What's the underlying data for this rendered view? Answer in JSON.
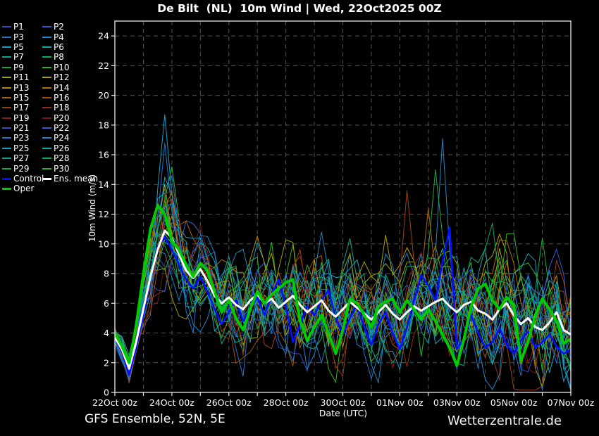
{
  "header": {
    "title": "De Bilt  (NL)  10m Wind | Wed, 22Oct2025 00Z"
  },
  "legend": {
    "control_label": "Control",
    "mean_label": "Ens. mean",
    "oper_label": "Oper"
  },
  "footer": {
    "left": "GFS Ensemble, 52N, 5E",
    "right": "Wetterzentrale.de"
  },
  "chart_data": {
    "type": "line",
    "title": "De Bilt  (NL)  10m Wind | Wed, 22Oct2025 00Z",
    "xlabel": "Date (UTC)",
    "ylabel": "10m Wind (m/s)",
    "ylim": [
      0,
      25
    ],
    "ytick_step": 2,
    "x_days": 16,
    "points_per_day": 4,
    "xtick_labels": [
      "22Oct 00z",
      "24Oct 00z",
      "26Oct 00z",
      "28Oct 00z",
      "30Oct 00z",
      "01Nov 00z",
      "03Nov 00z",
      "05Nov 00z",
      "07Nov 00z"
    ],
    "xtick_every_days": 2,
    "grid": {
      "x_every_days": 1,
      "y_every": 2
    },
    "background": "#000000",
    "grid_color": "#52524a",
    "axis_color": "#e9e9e9",
    "text_color": "#ffffff",
    "series": {
      "mean": {
        "name": "Ens. mean",
        "color": "#ffffff",
        "width": 3,
        "values": [
          3.7,
          2.9,
          1.6,
          3.4,
          5.6,
          7.8,
          9.6,
          10.9,
          10.4,
          9.3,
          8.2,
          7.7,
          8.3,
          7.5,
          6.5,
          6.0,
          6.4,
          5.9,
          5.6,
          6.2,
          6.6,
          6.0,
          6.3,
          5.7,
          6.1,
          6.5,
          5.9,
          5.4,
          5.8,
          6.2,
          5.5,
          5.1,
          5.6,
          6.1,
          5.7,
          5.3,
          4.9,
          5.4,
          5.9,
          5.3,
          4.9,
          5.4,
          5.8,
          5.5,
          5.8,
          6.1,
          6.3,
          5.8,
          5.4,
          5.9,
          6.1,
          5.5,
          5.3,
          4.9,
          5.6,
          6.0,
          5.2,
          4.6,
          5.0,
          4.4,
          4.2,
          4.7,
          5.4,
          4.2,
          3.9
        ]
      },
      "control": {
        "name": "Control",
        "color": "#0011ff",
        "width": 2.6,
        "values": [
          3.6,
          2.8,
          1.2,
          3.0,
          5.2,
          7.8,
          9.8,
          10.5,
          9.6,
          8.6,
          7.6,
          7.0,
          7.8,
          6.8,
          5.6,
          4.6,
          5.4,
          6.2,
          4.8,
          5.6,
          6.4,
          5.2,
          6.6,
          7.6,
          5.8,
          3.4,
          4.6,
          5.8,
          5.2,
          6.2,
          6.9,
          5.0,
          3.9,
          5.0,
          5.9,
          4.4,
          3.2,
          4.6,
          5.4,
          4.0,
          2.9,
          4.4,
          6.2,
          7.9,
          7.2,
          6.2,
          8.8,
          11.1,
          2.9,
          3.6,
          5.2,
          4.0,
          3.0,
          3.4,
          4.3,
          3.2,
          2.6,
          3.5,
          4.1,
          3.0,
          3.4,
          3.9,
          3.1,
          2.6,
          2.9
        ]
      },
      "oper": {
        "name": "Oper",
        "color": "#00cc00",
        "width": 3.8,
        "values": [
          4.0,
          3.1,
          2.0,
          4.5,
          8.0,
          11.0,
          12.6,
          12.0,
          10.2,
          9.6,
          8.6,
          7.8,
          8.7,
          8.2,
          6.8,
          5.4,
          6.2,
          5.0,
          4.2,
          5.6,
          6.8,
          6.0,
          6.6,
          7.0,
          7.4,
          7.6,
          4.8,
          3.5,
          4.4,
          5.2,
          4.0,
          2.6,
          4.2,
          6.3,
          6.0,
          5.2,
          4.4,
          5.8,
          6.1,
          6.3,
          5.4,
          6.2,
          5.6,
          4.9,
          5.6,
          4.8,
          3.9,
          3.0,
          1.8,
          3.6,
          5.8,
          7.0,
          7.3,
          6.2,
          5.6,
          6.4,
          5.9,
          2.1,
          3.4,
          5.2,
          6.3,
          5.6,
          4.8,
          3.3,
          3.6
        ]
      }
    },
    "members": {
      "count": 30,
      "labels": [
        "P1",
        "P2",
        "P3",
        "P4",
        "P5",
        "P6",
        "P7",
        "P8",
        "P9",
        "P10",
        "P11",
        "P12",
        "P13",
        "P14",
        "P15",
        "P16",
        "P17",
        "P18",
        "P19",
        "P20",
        "P21",
        "P22",
        "P23",
        "P24",
        "P25",
        "P26",
        "P27",
        "P28",
        "P29",
        "P30"
      ],
      "palette": [
        "#2b50c8",
        "#2b5fd0",
        "#2673cc",
        "#1d86c4",
        "#12a0c8",
        "#0ca8ac",
        "#0aa88a",
        "#0ba866",
        "#1ca83e",
        "#2eb42a",
        "#9aa402",
        "#ada000",
        "#b08a00",
        "#ae7400",
        "#a86108",
        "#a24e0e",
        "#9a3e12",
        "#8f2f14",
        "#822217",
        "#711a10"
      ],
      "width": 1,
      "spread_profile": [
        0.5,
        0.6,
        0.7,
        1.0,
        1.5,
        2.0,
        2.4,
        2.6,
        2.4,
        2.2,
        2.2,
        2.1,
        2.1,
        2.1,
        2.0,
        2.0,
        2.1,
        2.1,
        2.2,
        2.2,
        2.2,
        2.2,
        2.2,
        2.3,
        2.3,
        2.3,
        2.3,
        2.3,
        2.3,
        2.3,
        2.3,
        2.3,
        2.3,
        2.3,
        2.3,
        2.3,
        2.3,
        2.3,
        2.3,
        2.4,
        2.4,
        2.5,
        2.5,
        2.6,
        2.6,
        2.6,
        2.6,
        2.6,
        2.6,
        2.6,
        2.7,
        2.7,
        2.7,
        2.7,
        2.7,
        2.7,
        2.7,
        2.7,
        2.7,
        2.7,
        2.7,
        2.7,
        2.7,
        2.7,
        2.7
      ],
      "spikes": [
        {
          "m": 4,
          "t": 7,
          "v": 18.7
        },
        {
          "m": 2,
          "t": 7,
          "v": 16.8
        },
        {
          "m": 22,
          "t": 8,
          "v": 14.6
        },
        {
          "m": 9,
          "t": 8,
          "v": 15.2
        },
        {
          "m": 3,
          "t": 46,
          "v": 17.1
        },
        {
          "m": 8,
          "t": 45,
          "v": 15.0
        },
        {
          "m": 16,
          "t": 41,
          "v": 13.6
        },
        {
          "m": 14,
          "t": 44,
          "v": 12.4
        },
        {
          "m": 23,
          "t": 29,
          "v": 10.8
        },
        {
          "m": 27,
          "t": 53,
          "v": 11.4
        },
        {
          "m": 28,
          "t": 60,
          "v": 10.4
        },
        {
          "m": 11,
          "t": 38,
          "v": 10.6
        },
        {
          "m": 19,
          "t": 12,
          "v": 11.2
        }
      ]
    }
  }
}
